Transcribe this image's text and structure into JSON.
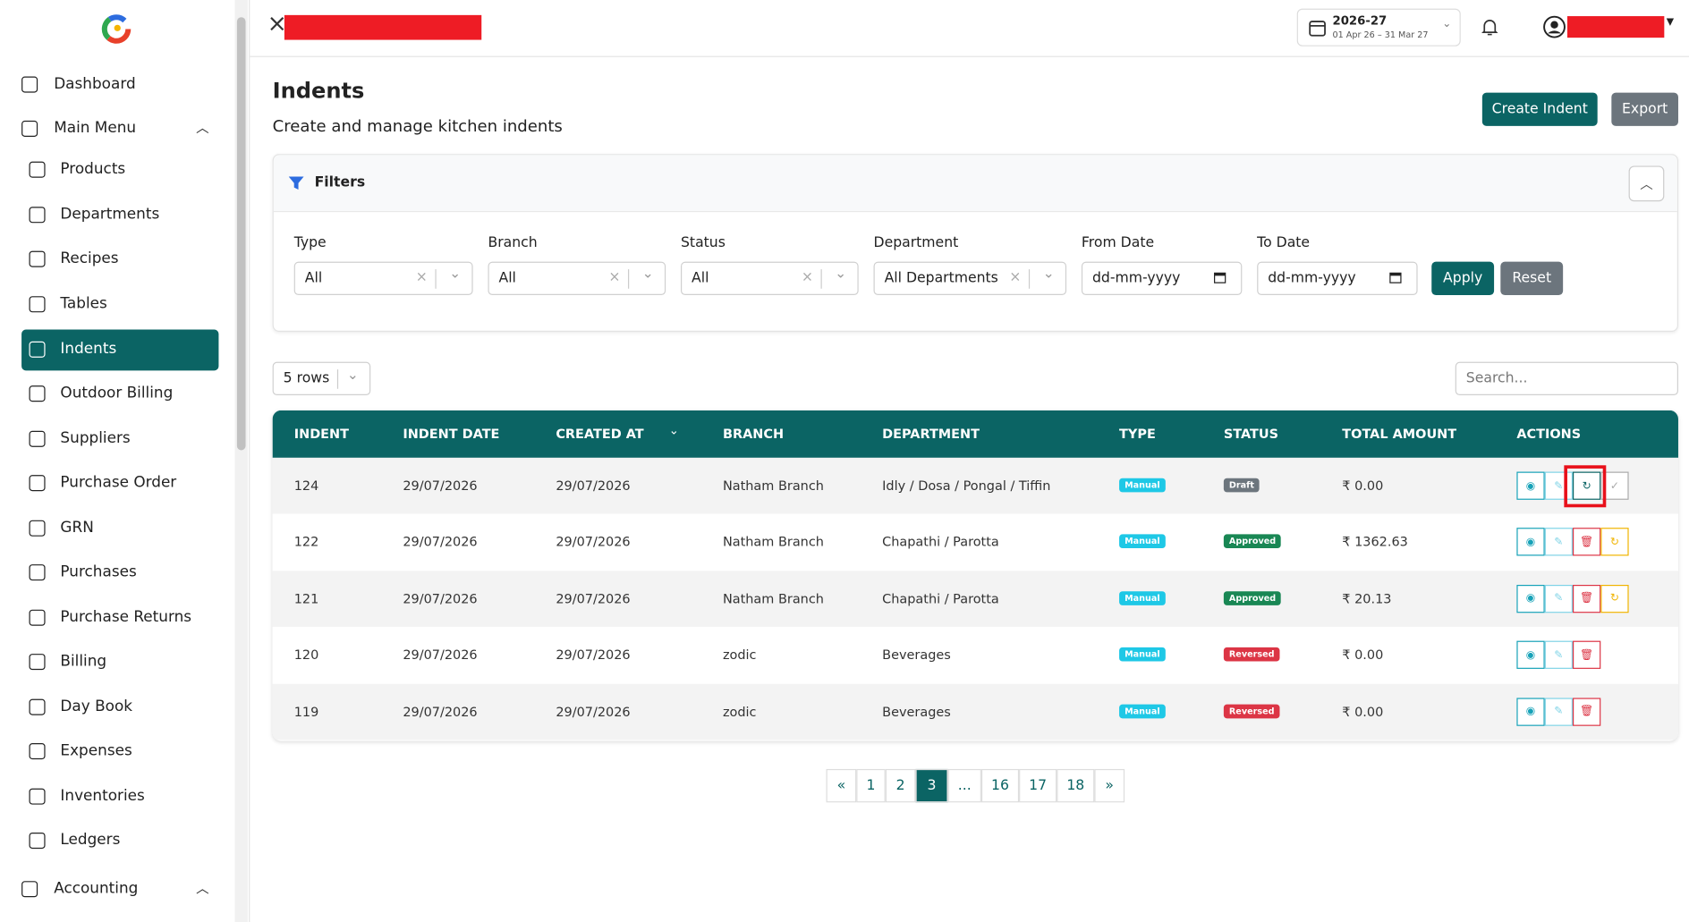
{
  "sidebar": {
    "items": [
      {
        "label": "Dashboard"
      },
      {
        "label": "Main Menu"
      },
      {
        "label": "Products"
      },
      {
        "label": "Departments"
      },
      {
        "label": "Recipes"
      },
      {
        "label": "Tables"
      },
      {
        "label": "Indents",
        "active": true
      },
      {
        "label": "Outdoor Billing"
      },
      {
        "label": "Suppliers"
      },
      {
        "label": "Purchase Order"
      },
      {
        "label": "GRN"
      },
      {
        "label": "Purchases"
      },
      {
        "label": "Purchase Returns"
      },
      {
        "label": "Billing"
      },
      {
        "label": "Day Book"
      },
      {
        "label": "Expenses"
      },
      {
        "label": "Inventories"
      },
      {
        "label": "Ledgers"
      },
      {
        "label": "Accounting"
      }
    ]
  },
  "header": {
    "year": "2026-27",
    "range": "01 Apr 26 – 31 Mar 27"
  },
  "page": {
    "title": "Indents",
    "subtitle": "Create and manage kitchen indents",
    "buttons": [
      "Create Indent",
      "Export"
    ]
  },
  "filters": {
    "title": "Filters",
    "fields": [
      {
        "label": "Type",
        "value": "All"
      },
      {
        "label": "Branch",
        "value": "All"
      },
      {
        "label": "Status",
        "value": "All"
      },
      {
        "label": "Department",
        "value": "All Departments"
      },
      {
        "label": "From Date",
        "value": "dd-mm-yyyy"
      },
      {
        "label": "To Date",
        "value": "dd-mm-yyyy"
      }
    ],
    "buttons": [
      "Apply",
      "Reset"
    ]
  },
  "table": {
    "rows_select": "5 rows",
    "search": "Search...",
    "columns": [
      "INDENT",
      "INDENT DATE",
      "CREATED AT",
      "BRANCH",
      "DEPARTMENT",
      "TYPE",
      "STATUS",
      "TOTAL AMOUNT",
      "ACTIONS"
    ],
    "rows": [
      [
        "124",
        "29/07/2026",
        "29/07/2026",
        "Natham Branch",
        "Idly / Dosa / Pongal / Tiffin",
        "Manual",
        "Draft",
        "₹ 0.00"
      ],
      [
        "122",
        "29/07/2026",
        "29/07/2026",
        "Natham Branch",
        "Chapathi / Parotta",
        "Manual",
        "Approved",
        "₹ 1362.63"
      ],
      [
        "121",
        "29/07/2026",
        "29/07/2026",
        "Natham Branch",
        "Chapathi / Parotta",
        "Manual",
        "Approved",
        "₹ 20.13"
      ],
      [
        "120",
        "29/07/2026",
        "29/07/2026",
        "zodic",
        "Beverages",
        "Manual",
        "Reversed",
        "₹ 0.00"
      ],
      [
        "119",
        "29/07/2026",
        "29/07/2026",
        "zodic",
        "Beverages",
        "Manual",
        "Reversed",
        "₹ 0.00"
      ]
    ]
  },
  "pagination": {
    "pages": [
      "«",
      "1",
      "2",
      "3",
      "...",
      "16",
      "17",
      "18",
      "»"
    ],
    "current": "3"
  }
}
